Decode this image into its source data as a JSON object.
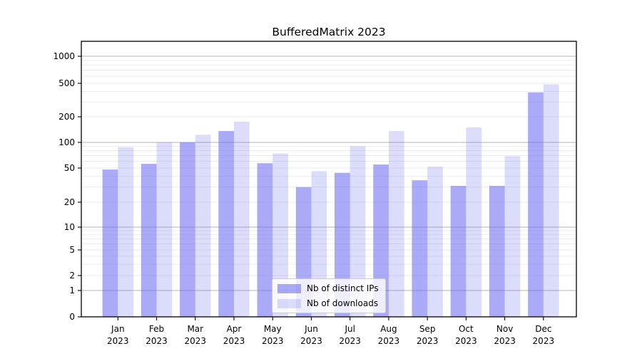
{
  "title": "BufferedMatrix 2023",
  "chart_data": {
    "type": "bar",
    "title": "BufferedMatrix 2023",
    "categories": [
      "Jan",
      "Feb",
      "Mar",
      "Apr",
      "May",
      "Jun",
      "Jul",
      "Aug",
      "Sep",
      "Oct",
      "Nov",
      "Dec"
    ],
    "category_year": "2023",
    "series": [
      {
        "name": "Nb of distinct IPs",
        "color": "#6464f0",
        "alpha": 0.55,
        "values": [
          48,
          56,
          100,
          136,
          57,
          30,
          44,
          55,
          36,
          31,
          31,
          390
        ]
      },
      {
        "name": "Nb of downloads",
        "color": "#7878f0",
        "alpha": 0.26,
        "values": [
          88,
          100,
          123,
          175,
          74,
          46,
          90,
          136,
          52,
          150,
          69,
          485
        ]
      }
    ],
    "xlabel": "",
    "ylabel": "",
    "y_scale": "symlog",
    "y_ticks": [
      0,
      1,
      2,
      5,
      10,
      20,
      50,
      100,
      200,
      500,
      1000
    ],
    "ylim": [
      0,
      1450
    ],
    "grid": "on",
    "grid_major_color": "#b3b3b3",
    "grid_minor_color": "#eaeaea",
    "legend_position": "lower center"
  }
}
